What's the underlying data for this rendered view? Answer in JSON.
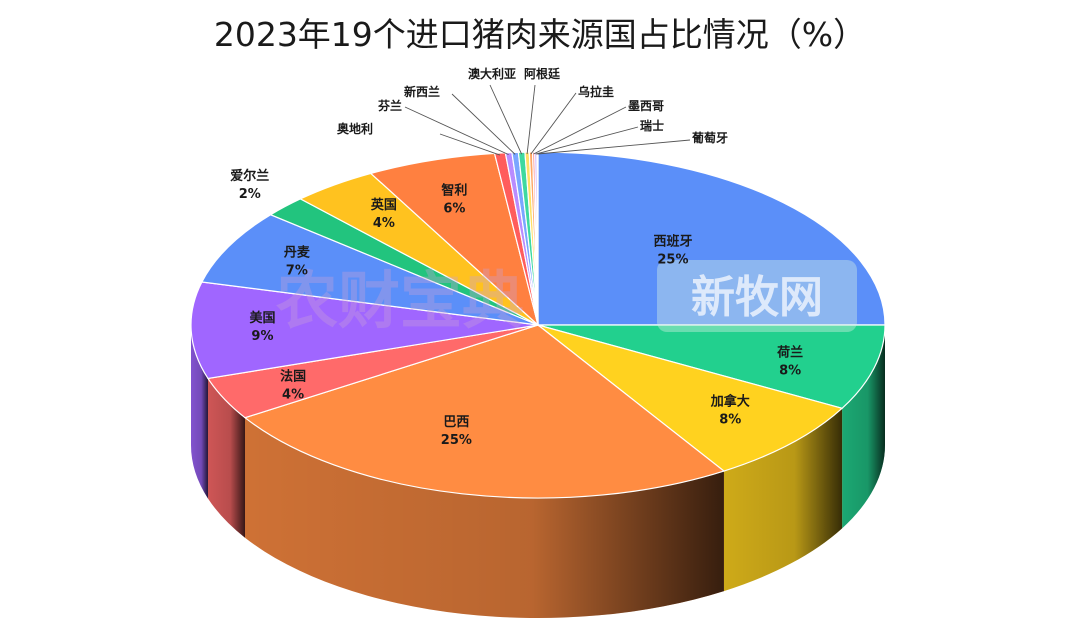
{
  "chart_data": {
    "type": "pie",
    "title": "2023年19个进口猪肉来源国占比情况（%）",
    "value_suffix": "%",
    "slices": [
      {
        "name": "西班牙",
        "value": 25,
        "color": "#5B8FF9"
      },
      {
        "name": "荷兰",
        "value": 8,
        "color": "#22D08E"
      },
      {
        "name": "加拿大",
        "value": 8,
        "color": "#FFD21F"
      },
      {
        "name": "巴西",
        "value": 25,
        "color": "#FF8C42"
      },
      {
        "name": "法国",
        "value": 4,
        "color": "#FF6A6A"
      },
      {
        "name": "美国",
        "value": 9,
        "color": "#A066FF"
      },
      {
        "name": "丹麦",
        "value": 7,
        "color": "#5B8FF9"
      },
      {
        "name": "爱尔兰",
        "value": 2,
        "color": "#22C47E"
      },
      {
        "name": "英国",
        "value": 4,
        "color": "#FFC21F"
      },
      {
        "name": "智利",
        "value": 6,
        "color": "#FF8040"
      },
      {
        "name": "奥地利",
        "value": 0.5,
        "color": "#FF5C5C"
      },
      {
        "name": "芬兰",
        "value": 0.3,
        "color": "#B98CFF"
      },
      {
        "name": "新西兰",
        "value": 0.3,
        "color": "#7AA6FF"
      },
      {
        "name": "澳大利亚",
        "value": 0.3,
        "color": "#3ED9A0"
      },
      {
        "name": "阿根廷",
        "value": 0.2,
        "color": "#FFE066"
      },
      {
        "name": "乌拉圭",
        "value": 0.15,
        "color": "#FFA866"
      },
      {
        "name": "墨西哥",
        "value": 0.1,
        "color": "#FF8A8A"
      },
      {
        "name": "瑞士",
        "value": 0.1,
        "color": "#C9A3FF"
      },
      {
        "name": "葡萄牙",
        "value": 0.05,
        "color": "#9CBCFF"
      }
    ],
    "inside_labels": [
      "西班牙",
      "荷兰",
      "加拿大",
      "巴西",
      "法国",
      "美国",
      "丹麦",
      "爱尔兰",
      "英国",
      "智利"
    ],
    "inside_value_labels": {
      "西班牙": "25%",
      "荷兰": "8%",
      "加拿大": "8%",
      "巴西": "25%",
      "法国": "4%",
      "美国": "9%",
      "丹麦": "7%",
      "爱尔兰": "2%",
      "英国": "4%",
      "智利": "6%"
    },
    "outside_labels": [
      "奥地利",
      "芬兰",
      "新西兰",
      "澳大利亚",
      "阿根廷",
      "乌拉圭",
      "墨西哥",
      "瑞士",
      "葡萄牙"
    ]
  },
  "watermarks": [
    "农财宝典",
    "新牧网"
  ]
}
